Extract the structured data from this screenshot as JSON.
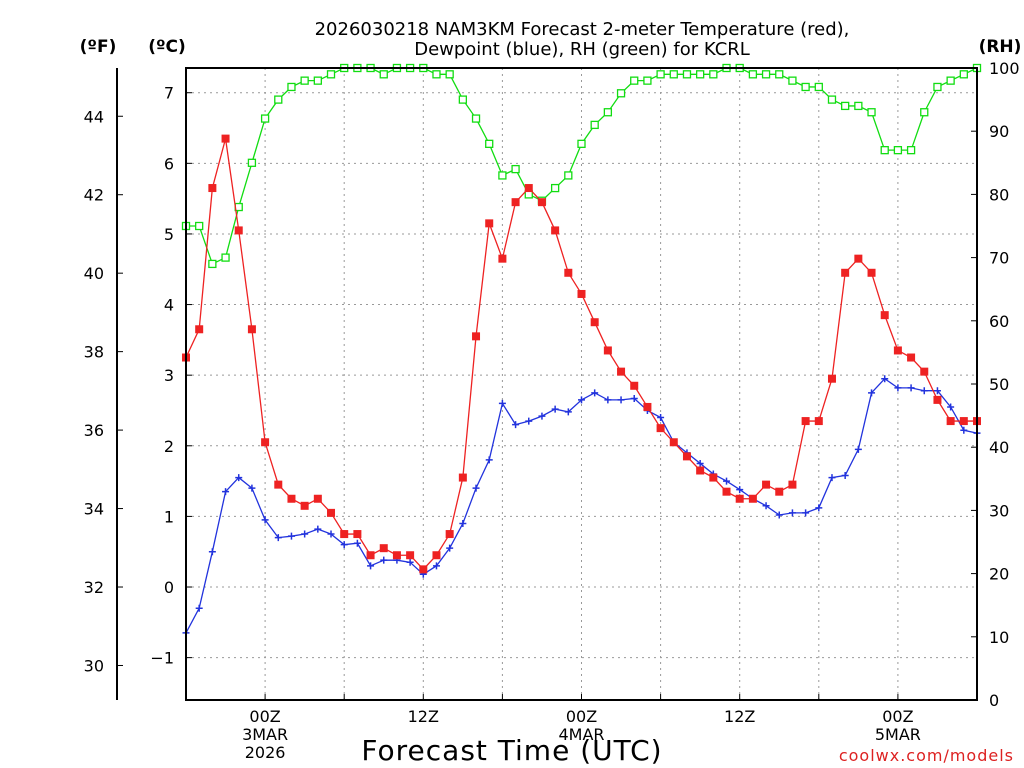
{
  "chart_data": {
    "type": "line",
    "title_line1": "2026030218 NAM3KM Forecast 2-meter Temperature (red),",
    "title_line2": "Dewpoint (blue), RH (green) for KCRL",
    "xlabel": "Forecast Time (UTC)",
    "watermark": "coolwx.com/models",
    "unit_left_outer": "(ºF)",
    "unit_left_inner": "(ºC)",
    "unit_right": "(RH)",
    "celsius_ylim": [
      -1.6,
      7.35
    ],
    "rh_ylim": [
      0,
      100
    ],
    "x_hours_range": [
      -6,
      54
    ],
    "celsius_ticks": [
      -1,
      0,
      1,
      2,
      3,
      4,
      5,
      6,
      7
    ],
    "celsius_tick_labels": [
      "−1",
      "0",
      "1",
      "2",
      "3",
      "4",
      "5",
      "6",
      "7"
    ],
    "fahrenheit_ticks": [
      30,
      32,
      34,
      36,
      38,
      40,
      42,
      44
    ],
    "rh_ticks": [
      0,
      10,
      20,
      30,
      40,
      50,
      60,
      70,
      80,
      90,
      100
    ],
    "x_ticks": [
      {
        "hour": 0,
        "lines": [
          "00Z",
          "3MAR",
          "2026"
        ]
      },
      {
        "hour": 12,
        "lines": [
          "12Z"
        ]
      },
      {
        "hour": 24,
        "lines": [
          "00Z",
          "4MAR"
        ]
      },
      {
        "hour": 36,
        "lines": [
          "12Z"
        ]
      },
      {
        "hour": 48,
        "lines": [
          "00Z",
          "5MAR"
        ]
      }
    ],
    "colors": {
      "temperature": "#ee2222",
      "dewpoint": "#2233dd",
      "rh": "#11dd11",
      "grid": "#999999"
    },
    "hours": [
      -6,
      -5,
      -4,
      -3,
      -2,
      -1,
      0,
      1,
      2,
      3,
      4,
      5,
      6,
      7,
      8,
      9,
      10,
      11,
      12,
      13,
      14,
      15,
      16,
      17,
      18,
      19,
      20,
      21,
      22,
      23,
      24,
      25,
      26,
      27,
      28,
      29,
      30,
      31,
      32,
      33,
      34,
      35,
      36,
      37,
      38,
      39,
      40,
      41,
      42,
      43,
      44,
      45,
      46,
      47,
      48,
      49,
      50,
      51,
      52,
      53,
      54
    ],
    "series": [
      {
        "name": "Temperature (red)",
        "unit": "C",
        "values": [
          3.25,
          3.65,
          5.65,
          6.35,
          5.05,
          3.65,
          2.05,
          1.45,
          1.25,
          1.15,
          1.25,
          1.05,
          0.75,
          0.75,
          0.45,
          0.55,
          0.45,
          0.45,
          0.25,
          0.45,
          0.75,
          1.55,
          3.55,
          5.15,
          4.65,
          5.45,
          5.65,
          5.45,
          5.05,
          4.45,
          4.15,
          3.75,
          3.35,
          3.05,
          2.85,
          2.55,
          2.25,
          2.05,
          1.85,
          1.65,
          1.55,
          1.35,
          1.25,
          1.25,
          1.45,
          1.35,
          1.45,
          2.35,
          2.35,
          2.95,
          4.45,
          4.65,
          4.45,
          3.85,
          3.35,
          3.25,
          3.05,
          2.65,
          2.35,
          2.35,
          2.35
        ]
      },
      {
        "name": "Dewpoint (blue)",
        "unit": "C",
        "values": [
          -0.65,
          -0.3,
          0.5,
          1.35,
          1.55,
          1.4,
          0.95,
          0.7,
          0.72,
          0.75,
          0.82,
          0.75,
          0.6,
          0.62,
          0.3,
          0.38,
          0.38,
          0.35,
          0.18,
          0.3,
          0.55,
          0.9,
          1.4,
          1.8,
          2.6,
          2.3,
          2.35,
          2.42,
          2.52,
          2.48,
          2.65,
          2.75,
          2.65,
          2.65,
          2.67,
          2.5,
          2.4,
          2.05,
          1.9,
          1.75,
          1.6,
          1.5,
          1.38,
          1.25,
          1.15,
          1.02,
          1.05,
          1.05,
          1.12,
          1.55,
          1.58,
          1.95,
          2.75,
          2.95,
          2.82,
          2.82,
          2.78,
          2.78,
          2.55,
          2.22,
          2.18
        ]
      },
      {
        "name": "RH (green)",
        "unit": "%",
        "values": [
          75,
          75,
          69,
          70,
          78,
          85,
          92,
          95,
          97,
          98,
          98,
          99,
          100,
          100,
          100,
          99,
          100,
          100,
          100,
          99,
          99,
          95,
          92,
          88,
          83,
          84,
          80,
          79,
          81,
          83,
          88,
          91,
          93,
          96,
          98,
          98,
          99,
          99,
          99,
          99,
          99,
          100,
          100,
          99,
          99,
          99,
          98,
          97,
          97,
          95,
          94,
          94,
          93,
          87,
          87,
          87,
          93,
          97,
          98,
          99,
          100
        ]
      }
    ]
  }
}
